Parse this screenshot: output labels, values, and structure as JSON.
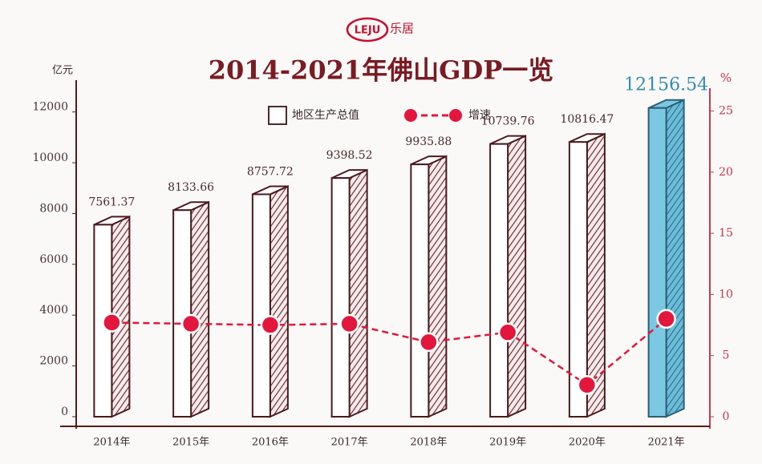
{
  "logo": {
    "mark": "LEJU",
    "name": "乐居"
  },
  "chart_data": {
    "type": "bar",
    "title": "2014-2021年佛山GDP一览",
    "y_label": "亿元",
    "y2_label": "%",
    "categories": [
      "2014年",
      "2015年",
      "2016年",
      "2017年",
      "2018年",
      "2019年",
      "2020年",
      "2021年"
    ],
    "series": [
      {
        "name": "地区生产总值",
        "type": "bar",
        "color": "#ffffff",
        "colors": [
          "#ffffff",
          "#ffffff",
          "#ffffff",
          "#ffffff",
          "#ffffff",
          "#ffffff",
          "#ffffff",
          "#7cc8e2"
        ],
        "values": [
          7561.37,
          8133.66,
          8757.72,
          9398.52,
          9935.88,
          10739.76,
          10816.47,
          12156.54
        ]
      },
      {
        "name": "增速",
        "type": "line",
        "axis": "y2",
        "color": "#e3173e",
        "values": [
          7.7,
          7.6,
          7.5,
          7.6,
          6.1,
          6.9,
          2.6,
          8.0
        ]
      }
    ],
    "ylim": [
      0,
      13000
    ],
    "yticks": [
      0,
      2000,
      4000,
      6000,
      8000,
      10000,
      12000
    ],
    "y2lim": [
      0,
      27
    ],
    "y2ticks": [
      0,
      5,
      10,
      15,
      20,
      25
    ],
    "legend": "top"
  }
}
